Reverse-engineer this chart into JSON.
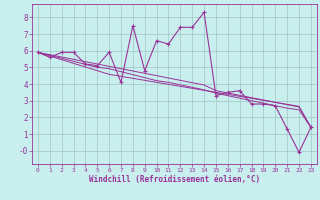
{
  "xlabel": "Windchill (Refroidissement éolien,°C)",
  "ylabel": "",
  "bg_color": "#c8eeee",
  "line_color": "#993399",
  "grid_color": "#99bbbb",
  "x_data": [
    0,
    1,
    2,
    3,
    4,
    5,
    6,
    7,
    8,
    9,
    10,
    11,
    12,
    13,
    14,
    15,
    16,
    17,
    18,
    19,
    20,
    21,
    22,
    23
  ],
  "y_main": [
    5.9,
    5.6,
    5.9,
    5.9,
    5.2,
    5.1,
    5.9,
    4.1,
    7.5,
    4.8,
    6.6,
    6.4,
    7.4,
    7.4,
    8.3,
    3.3,
    3.5,
    3.6,
    2.8,
    2.8,
    2.7,
    1.3,
    -0.1,
    1.4
  ],
  "y_trend1": [
    5.9,
    5.68,
    5.46,
    5.24,
    5.02,
    4.8,
    4.58,
    4.46,
    4.34,
    4.22,
    4.1,
    3.98,
    3.86,
    3.74,
    3.62,
    3.5,
    3.38,
    3.26,
    3.14,
    3.02,
    2.9,
    2.78,
    2.66,
    1.4
  ],
  "y_trend2": [
    5.9,
    5.72,
    5.54,
    5.36,
    5.18,
    5.0,
    4.92,
    4.74,
    4.56,
    4.38,
    4.2,
    4.1,
    3.95,
    3.8,
    3.65,
    3.45,
    3.3,
    3.15,
    3.0,
    2.85,
    2.7,
    2.55,
    2.45,
    1.4
  ],
  "y_trend3": [
    5.9,
    5.76,
    5.62,
    5.48,
    5.34,
    5.2,
    5.06,
    4.92,
    4.78,
    4.64,
    4.5,
    4.36,
    4.22,
    4.08,
    3.94,
    3.6,
    3.46,
    3.32,
    3.18,
    3.04,
    2.9,
    2.76,
    2.62,
    1.4
  ],
  "xlim": [
    -0.5,
    23.5
  ],
  "ylim": [
    -0.8,
    8.8
  ],
  "xticks": [
    0,
    1,
    2,
    3,
    4,
    5,
    6,
    7,
    8,
    9,
    10,
    11,
    12,
    13,
    14,
    15,
    16,
    17,
    18,
    19,
    20,
    21,
    22,
    23
  ],
  "yticks": [
    0,
    1,
    2,
    3,
    4,
    5,
    6,
    7,
    8
  ],
  "ytick_labels": [
    "-0",
    "1",
    "2",
    "3",
    "4",
    "5",
    "6",
    "7",
    "8"
  ]
}
